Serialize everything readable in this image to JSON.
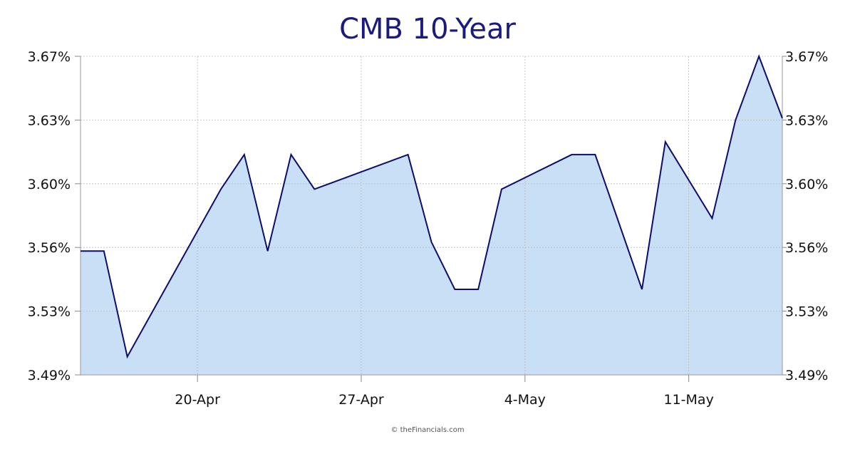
{
  "title": "CMB 10-Year",
  "credit": "© theFinancials.com",
  "colors": {
    "title": "#1a1a80",
    "line": "#0d0d6b",
    "fill": "#c9dff5",
    "grid": "#bbbbbb"
  },
  "chart_data": {
    "type": "area",
    "title": "CMB 10-Year",
    "xlabel": "",
    "ylabel": "",
    "grid": true,
    "y_axis": "both sides",
    "x_tick_labels": [
      "20-Apr",
      "27-Apr",
      "4-May",
      "11-May"
    ],
    "x_tick_dates": [
      "2020-04-20",
      "2020-04-27",
      "2020-05-04",
      "2020-05-11"
    ],
    "y_tick_labels": [
      "3.67%",
      "3.63%",
      "3.60%",
      "3.56%",
      "3.53%",
      "3.49%"
    ],
    "y_tick_values": [
      3.67,
      3.635,
      3.6,
      3.565,
      3.53,
      3.495
    ],
    "ylim": [
      3.495,
      3.67
    ],
    "xlim": [
      "2020-04-15",
      "2020-05-15"
    ],
    "series": [
      {
        "values": [
          [
            "2020-04-15",
            3.563
          ],
          [
            "2020-04-16",
            3.563
          ],
          [
            "2020-04-17",
            3.505
          ],
          [
            "2020-04-21",
            3.597
          ],
          [
            "2020-04-22",
            3.616
          ],
          [
            "2020-04-23",
            3.563
          ],
          [
            "2020-04-24",
            3.616
          ],
          [
            "2020-04-25",
            3.597
          ],
          [
            "2020-04-29",
            3.616
          ],
          [
            "2020-04-30",
            3.568
          ],
          [
            "2020-05-01",
            3.542
          ],
          [
            "2020-05-02",
            3.542
          ],
          [
            "2020-05-03",
            3.597
          ],
          [
            "2020-05-06",
            3.616
          ],
          [
            "2020-05-07",
            3.616
          ],
          [
            "2020-05-09",
            3.542
          ],
          [
            "2020-05-10",
            3.623
          ],
          [
            "2020-05-12",
            3.581
          ],
          [
            "2020-05-13",
            3.635
          ],
          [
            "2020-05-14",
            3.67
          ],
          [
            "2020-05-15",
            3.636
          ]
        ]
      }
    ]
  }
}
